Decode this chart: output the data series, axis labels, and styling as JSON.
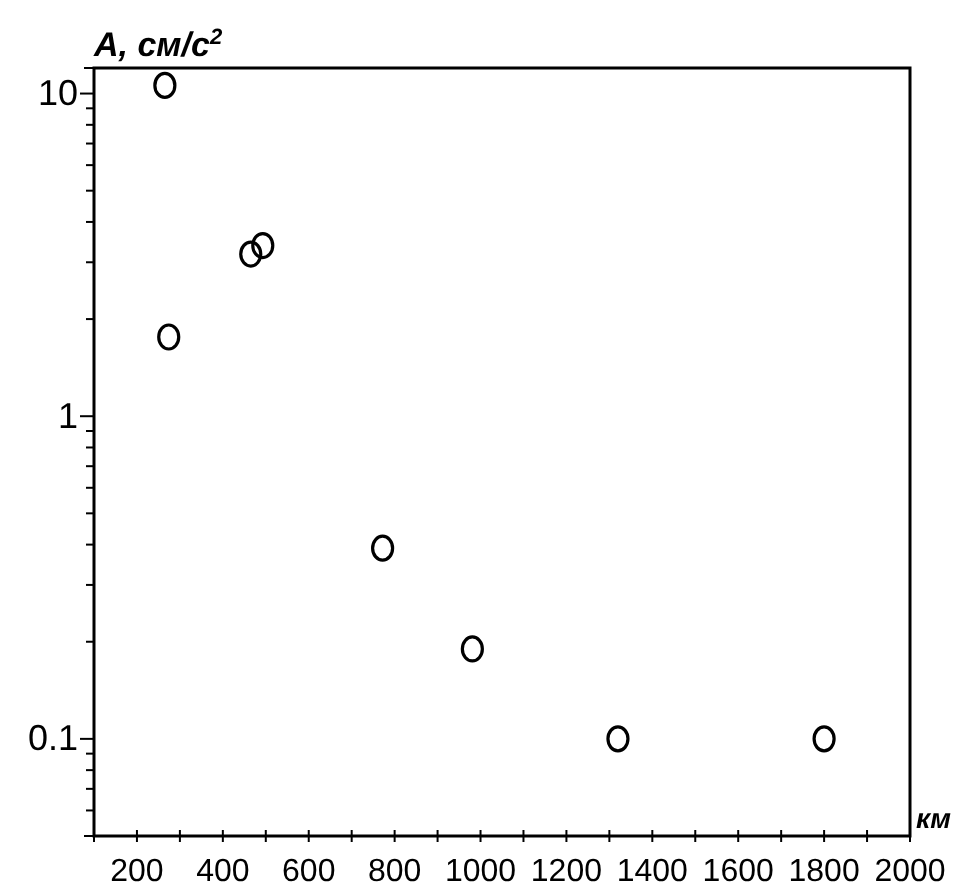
{
  "chart_data": {
    "type": "scatter",
    "ylabel": "A, см/с$^{2}$",
    "xlabel": "км",
    "marker": "circle",
    "log": "y",
    "x": [
      265,
      274,
      465,
      493,
      772,
      981,
      1320,
      1800
    ],
    "series": [
      {
        "color": "#000000",
        "values": [
          10.6,
          1.76,
          3.18,
          3.38,
          0.39,
          0.19,
          0.1,
          0.1
        ]
      }
    ],
    "xlim": [
      100,
      2000
    ],
    "xticks": [
      {
        "value": 100,
        "label": null
      },
      200,
      {
        "value": 300,
        "label": null
      },
      400,
      {
        "value": 500,
        "label": null
      },
      600,
      {
        "value": 700,
        "label": null
      },
      800,
      {
        "value": 900,
        "label": null
      },
      1000,
      {
        "value": 1100,
        "label": null
      },
      1200,
      {
        "value": 1300,
        "label": null
      },
      1400,
      {
        "value": 1500,
        "label": null
      },
      1600,
      {
        "value": 1700,
        "label": null
      },
      1800,
      {
        "value": 1900,
        "label": null
      },
      2000
    ],
    "ylim": [
      0.05,
      12
    ],
    "yticks": [
      {
        "value": 0.05,
        "label": null
      },
      {
        "value": 0.06,
        "label": null
      },
      {
        "value": 0.07,
        "label": null
      },
      {
        "value": 0.08,
        "label": null
      },
      {
        "value": 0.09,
        "label": null
      },
      0.1,
      {
        "value": 0.2,
        "label": null
      },
      {
        "value": 0.3,
        "label": null
      },
      {
        "value": 0.4,
        "label": null
      },
      {
        "value": 0.5,
        "label": null
      },
      {
        "value": 0.6,
        "label": null
      },
      {
        "value": 0.7,
        "label": null
      },
      {
        "value": 0.8,
        "label": null
      },
      {
        "value": 0.9,
        "label": null
      },
      1,
      {
        "value": 2,
        "label": null
      },
      {
        "value": 3,
        "label": null
      },
      {
        "value": 4,
        "label": null
      },
      {
        "value": 5,
        "label": null
      },
      {
        "value": 6,
        "label": null
      },
      {
        "value": 7,
        "label": null
      },
      {
        "value": 8,
        "label": null
      },
      {
        "value": 9,
        "label": null
      },
      10
    ]
  }
}
